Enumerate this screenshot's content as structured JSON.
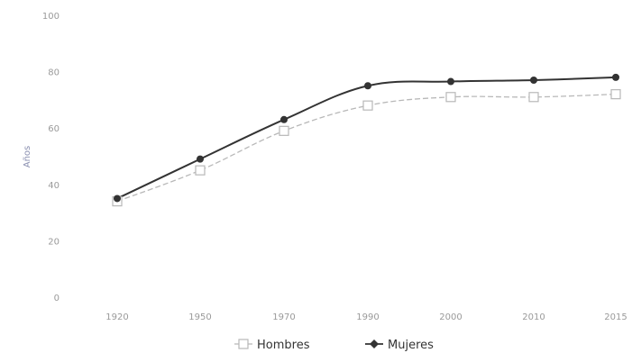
{
  "chart_data": {
    "type": "line",
    "title": "",
    "xlabel": "",
    "ylabel": "Años",
    "ylim": [
      0,
      100
    ],
    "yticks": [
      0,
      20,
      40,
      60,
      80,
      100
    ],
    "x": [
      1920,
      1950,
      1970,
      1990,
      2000,
      2010,
      2015
    ],
    "xtick_labels": [
      "1920",
      "1950",
      "1970",
      "1990",
      "2000",
      "2010",
      "2015"
    ],
    "grid": false,
    "legend_position": "bottom",
    "series": [
      {
        "name": "Hombres",
        "values": [
          34,
          45,
          59,
          68,
          71,
          71,
          72
        ],
        "color": "#b8b8b8",
        "marker": "square"
      },
      {
        "name": "Mujeres",
        "values": [
          35,
          49,
          63,
          75,
          76.5,
          77,
          78
        ],
        "color": "#333333",
        "marker": "diamond"
      }
    ]
  }
}
